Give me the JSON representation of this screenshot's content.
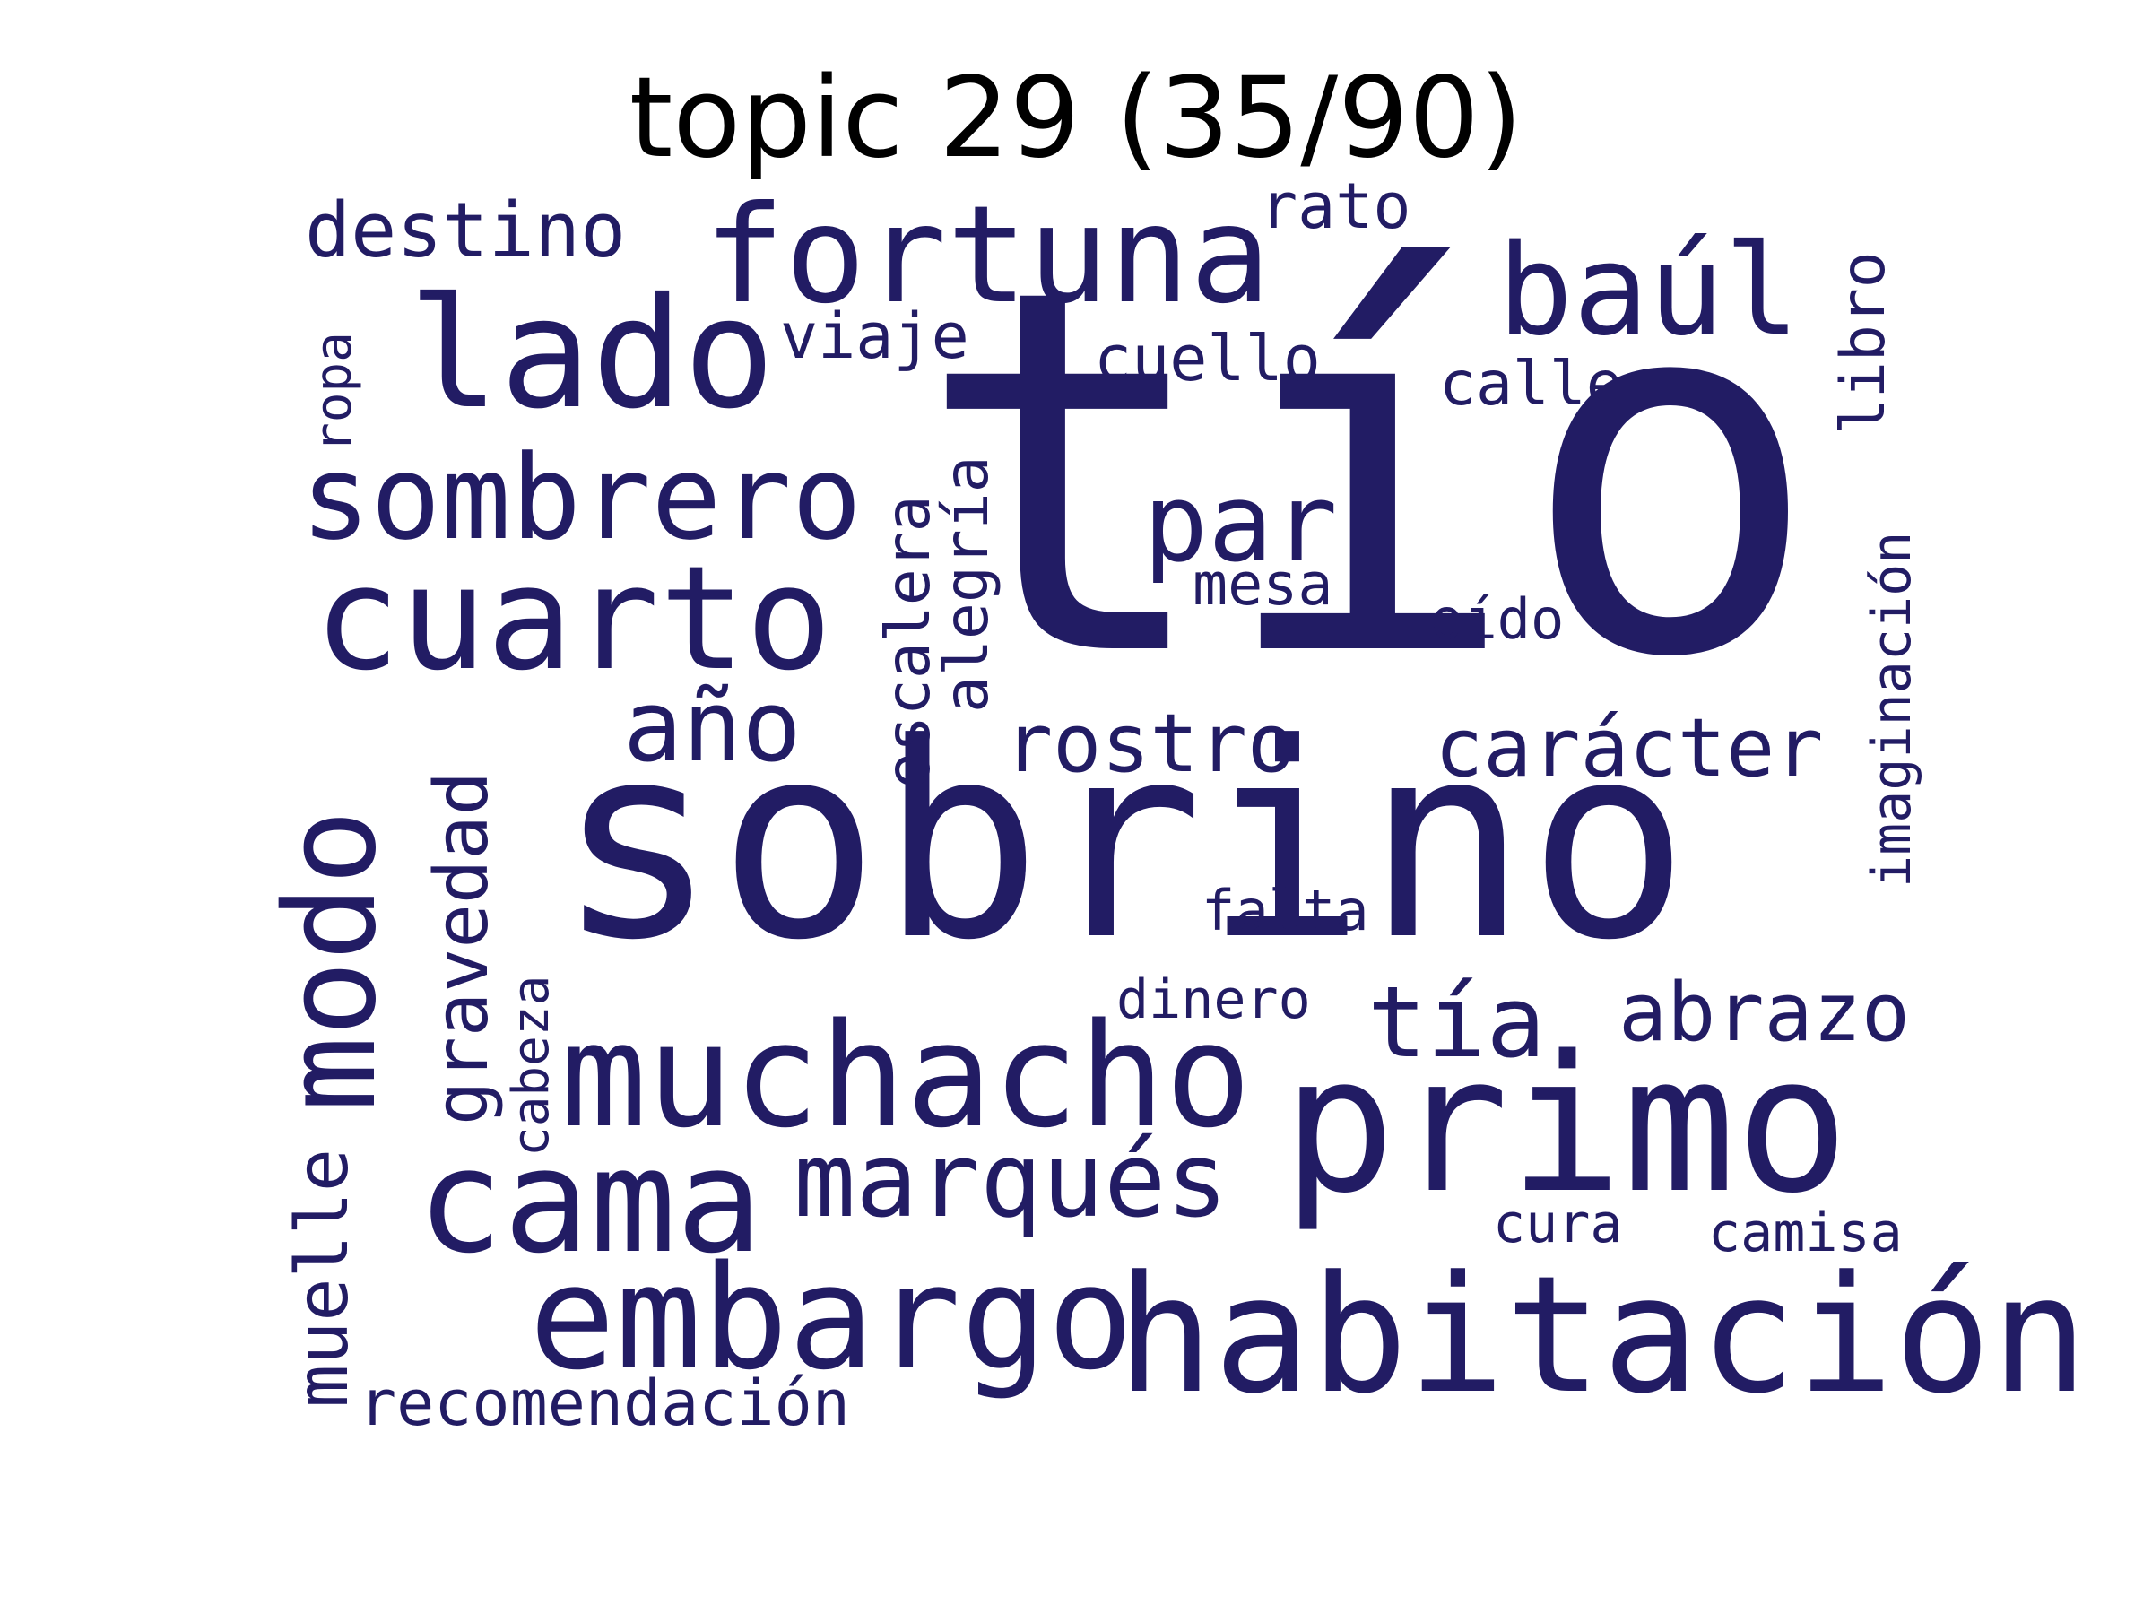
{
  "title": "topic 29 (35/90)",
  "word_color": "#221c64",
  "words": [
    "tío",
    "sobrino",
    "primo",
    "habitación",
    "muchacho",
    "embargo",
    "cuarto",
    "cama",
    "lado",
    "fortuna",
    "modo",
    "marqués",
    "sombrero",
    "baúl",
    "par",
    "tía",
    "año",
    "carácter",
    "rostro",
    "abrazo",
    "gravedad",
    "destino",
    "muelle",
    "viaje",
    "cuello",
    "rato",
    "calle",
    "escalera",
    "alegría",
    "libro",
    "imaginación",
    "recomendación",
    "mesa",
    "oído",
    "falta",
    "dinero",
    "cabeza",
    "ropa",
    "cura",
    "camisa"
  ]
}
